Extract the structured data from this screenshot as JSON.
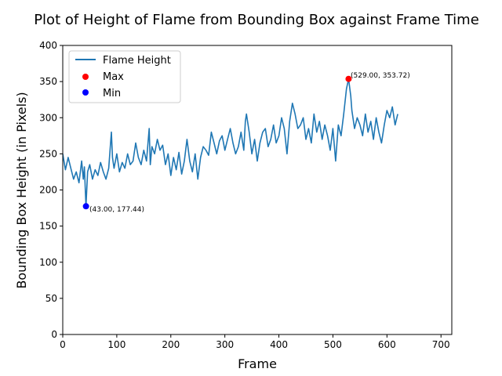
{
  "chart_data": {
    "type": "line",
    "title": "Plot of Height of Flame from Bounding Box against Frame Time",
    "xlabel": "Frame",
    "ylabel": "Bounding Box Height (in Pixels)",
    "xlim": [
      0,
      720
    ],
    "ylim": [
      0,
      400
    ],
    "xticks": [
      0,
      100,
      200,
      300,
      400,
      500,
      600,
      700
    ],
    "yticks": [
      0,
      50,
      100,
      150,
      200,
      250,
      300,
      350,
      400
    ],
    "grid": false,
    "legend_position": "top-left",
    "series": [
      {
        "name": "Flame Height",
        "color": "#1f77b4",
        "x": [
          0,
          5,
          10,
          15,
          20,
          25,
          30,
          35,
          38,
          40,
          43,
          46,
          50,
          55,
          60,
          65,
          70,
          75,
          80,
          85,
          90,
          92,
          95,
          100,
          105,
          110,
          115,
          120,
          125,
          130,
          135,
          140,
          145,
          150,
          155,
          160,
          162,
          165,
          170,
          175,
          180,
          185,
          190,
          195,
          200,
          205,
          210,
          215,
          220,
          225,
          230,
          235,
          240,
          245,
          250,
          255,
          260,
          265,
          270,
          275,
          280,
          285,
          290,
          295,
          300,
          305,
          310,
          315,
          320,
          325,
          330,
          335,
          338,
          340,
          345,
          350,
          355,
          360,
          365,
          370,
          375,
          380,
          385,
          390,
          395,
          400,
          405,
          410,
          415,
          420,
          425,
          430,
          435,
          440,
          445,
          450,
          455,
          460,
          465,
          470,
          475,
          480,
          485,
          490,
          495,
          500,
          505,
          510,
          515,
          520,
          525,
          529,
          533,
          535,
          540,
          545,
          550,
          555,
          560,
          565,
          570,
          575,
          580,
          585,
          590,
          595,
          600,
          605,
          610,
          615,
          620
        ],
        "y": [
          250,
          228,
          245,
          230,
          215,
          225,
          210,
          240,
          215,
          232,
          177.44,
          225,
          235,
          215,
          228,
          220,
          238,
          225,
          215,
          230,
          280,
          245,
          230,
          250,
          225,
          238,
          230,
          250,
          235,
          240,
          265,
          245,
          235,
          255,
          240,
          285,
          235,
          260,
          250,
          270,
          255,
          262,
          235,
          250,
          220,
          245,
          228,
          252,
          222,
          240,
          270,
          240,
          225,
          250,
          215,
          245,
          260,
          255,
          248,
          280,
          265,
          250,
          268,
          275,
          255,
          270,
          285,
          265,
          250,
          260,
          280,
          255,
          295,
          305,
          280,
          250,
          270,
          240,
          265,
          280,
          285,
          260,
          270,
          290,
          265,
          275,
          300,
          285,
          250,
          295,
          320,
          305,
          285,
          290,
          300,
          270,
          285,
          265,
          305,
          280,
          295,
          270,
          290,
          275,
          255,
          285,
          240,
          290,
          275,
          305,
          340,
          353.72,
          330,
          310,
          285,
          300,
          290,
          275,
          305,
          280,
          295,
          270,
          300,
          280,
          265,
          290,
          310,
          300,
          315,
          290,
          305
        ]
      }
    ],
    "points": [
      {
        "name": "Max",
        "color": "#ff0000",
        "x": 529.0,
        "y": 353.72,
        "label": "(529.00, 353.72)"
      },
      {
        "name": "Min",
        "color": "#0000ff",
        "x": 43.0,
        "y": 177.44,
        "label": "(43.00, 177.44)"
      }
    ]
  }
}
